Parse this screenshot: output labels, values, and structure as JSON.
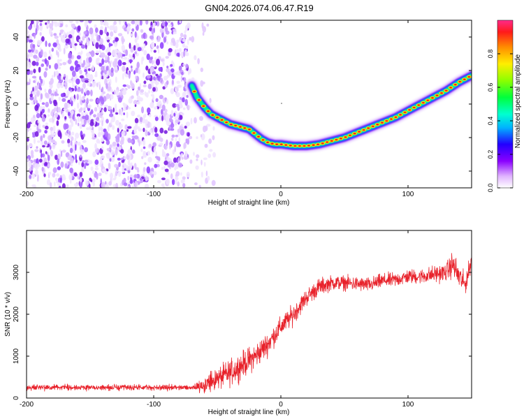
{
  "figure_title": "GN04.2026.074.06.47.R19",
  "chart_data": [
    {
      "type": "heatmap",
      "name": "spectrogram",
      "xlabel": "Height of straight line (km)",
      "ylabel": "Frequency (Hz)",
      "xlim": [
        -200,
        150
      ],
      "ylim": [
        -50,
        50
      ],
      "x_ticks": [
        "-200",
        "-100",
        "0",
        "100"
      ],
      "x_tick_values": [
        -200,
        -100,
        0,
        100
      ],
      "y_ticks": [
        "40",
        "20",
        "0",
        "-20",
        "-40"
      ],
      "y_tick_values": [
        40,
        20,
        0,
        -20,
        -40
      ],
      "noise_region_x": [
        -200,
        -60
      ],
      "noise_color": "#7a1fe0",
      "trace_x": [
        -70,
        -66,
        -60,
        -55,
        -50,
        -45,
        -40,
        -35,
        -30,
        -25,
        -20,
        -15,
        -10,
        -5,
        0,
        5,
        10,
        15,
        20,
        25,
        30,
        40,
        50,
        60,
        70,
        80,
        90,
        100,
        110,
        120,
        130,
        140,
        150
      ],
      "trace_freq": [
        11,
        4,
        -2,
        -6,
        -8,
        -10,
        -12,
        -13,
        -14,
        -15,
        -18,
        -21,
        -23,
        -24,
        -24,
        -24.5,
        -25,
        -25,
        -25,
        -24.5,
        -24,
        -22,
        -20,
        -17,
        -14,
        -11,
        -8,
        -4,
        0,
        4,
        8,
        13,
        17
      ],
      "colorbar": {
        "label": "Normalized spectral amplitude",
        "range": [
          0,
          1
        ],
        "ticks": [
          "0.0",
          "0.2",
          "0.4",
          "0.6",
          "0.8"
        ],
        "tick_values": [
          0.0,
          0.2,
          0.4,
          0.6,
          0.8
        ]
      }
    },
    {
      "type": "line",
      "name": "snr",
      "xlabel": "Height of straight line (km)",
      "ylabel": "SNR (10 * v/v)",
      "xlim": [
        -200,
        150
      ],
      "ylim": [
        0,
        4000
      ],
      "x_ticks": [
        "-200",
        "-100",
        "0",
        "100"
      ],
      "x_tick_values": [
        -200,
        -100,
        0,
        100
      ],
      "y_ticks": [
        "0",
        "1000",
        "2000",
        "3000"
      ],
      "y_tick_values": [
        0,
        1000,
        2000,
        3000
      ],
      "color": "#e8222b",
      "x": [
        -200,
        -150,
        -100,
        -70,
        -60,
        -50,
        -40,
        -30,
        -20,
        -10,
        0,
        10,
        20,
        30,
        40,
        50,
        60,
        70,
        80,
        90,
        100,
        110,
        120,
        130,
        135,
        140,
        145,
        150
      ],
      "mean": [
        250,
        250,
        250,
        250,
        320,
        450,
        600,
        800,
        1000,
        1300,
        1700,
        2000,
        2400,
        2650,
        2750,
        2750,
        2720,
        2700,
        2800,
        2820,
        2900,
        2900,
        2950,
        3000,
        3200,
        2900,
        2700,
        3300
      ],
      "spread": [
        100,
        100,
        100,
        100,
        300,
        400,
        450,
        450,
        450,
        400,
        350,
        350,
        300,
        300,
        250,
        250,
        250,
        250,
        250,
        250,
        250,
        250,
        300,
        300,
        450,
        450,
        350,
        300
      ]
    }
  ]
}
